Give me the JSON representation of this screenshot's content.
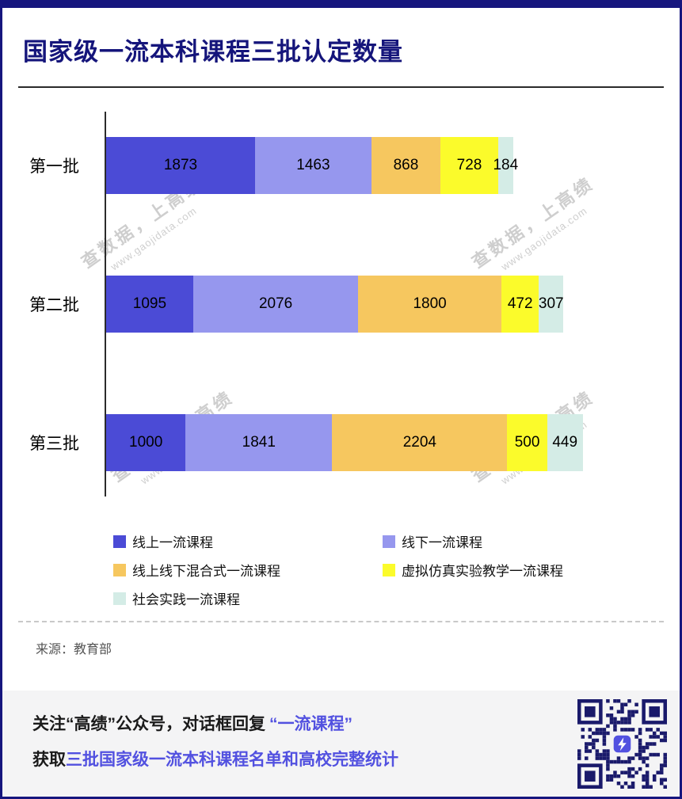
{
  "page": {
    "title": "国家级一流本科课程三批认定数量"
  },
  "watermark": {
    "line1": "查数据，上高绩",
    "line2": "www.gaojidata.com"
  },
  "source": {
    "label": "来源：教育部"
  },
  "footer": {
    "line1_prefix": "关注“高绩”公众号，对话框回复",
    "line1_highlight": "“一流课程”",
    "line2_prefix": "获取",
    "line2_highlight": "三批国家级一流本科课程名单和高校完整统计"
  },
  "chart_data": {
    "type": "bar",
    "orientation": "horizontal",
    "stacked": true,
    "title": "国家级一流本科课程三批认定数量",
    "categories": [
      "第一批",
      "第二批",
      "第三批"
    ],
    "series": [
      {
        "name": "线上一流课程",
        "color": "#4B4BD6",
        "values": [
          1873,
          1095,
          1000
        ]
      },
      {
        "name": "线下一流课程",
        "color": "#9697EE",
        "values": [
          1463,
          2076,
          1841
        ]
      },
      {
        "name": "线上线下混合式一流课程",
        "color": "#F6C75F",
        "values": [
          868,
          1800,
          2204
        ]
      },
      {
        "name": "虚拟仿真实验教学一流课程",
        "color": "#FBFB2B",
        "values": [
          728,
          472,
          500
        ]
      },
      {
        "name": "社会实践一流课程",
        "color": "#D4ECE6",
        "values": [
          184,
          307,
          449
        ]
      }
    ],
    "totals": [
      5116,
      5750,
      5994
    ],
    "xlim": [
      0,
      6000
    ],
    "legend_position": "bottom",
    "value_labels": "inside"
  }
}
